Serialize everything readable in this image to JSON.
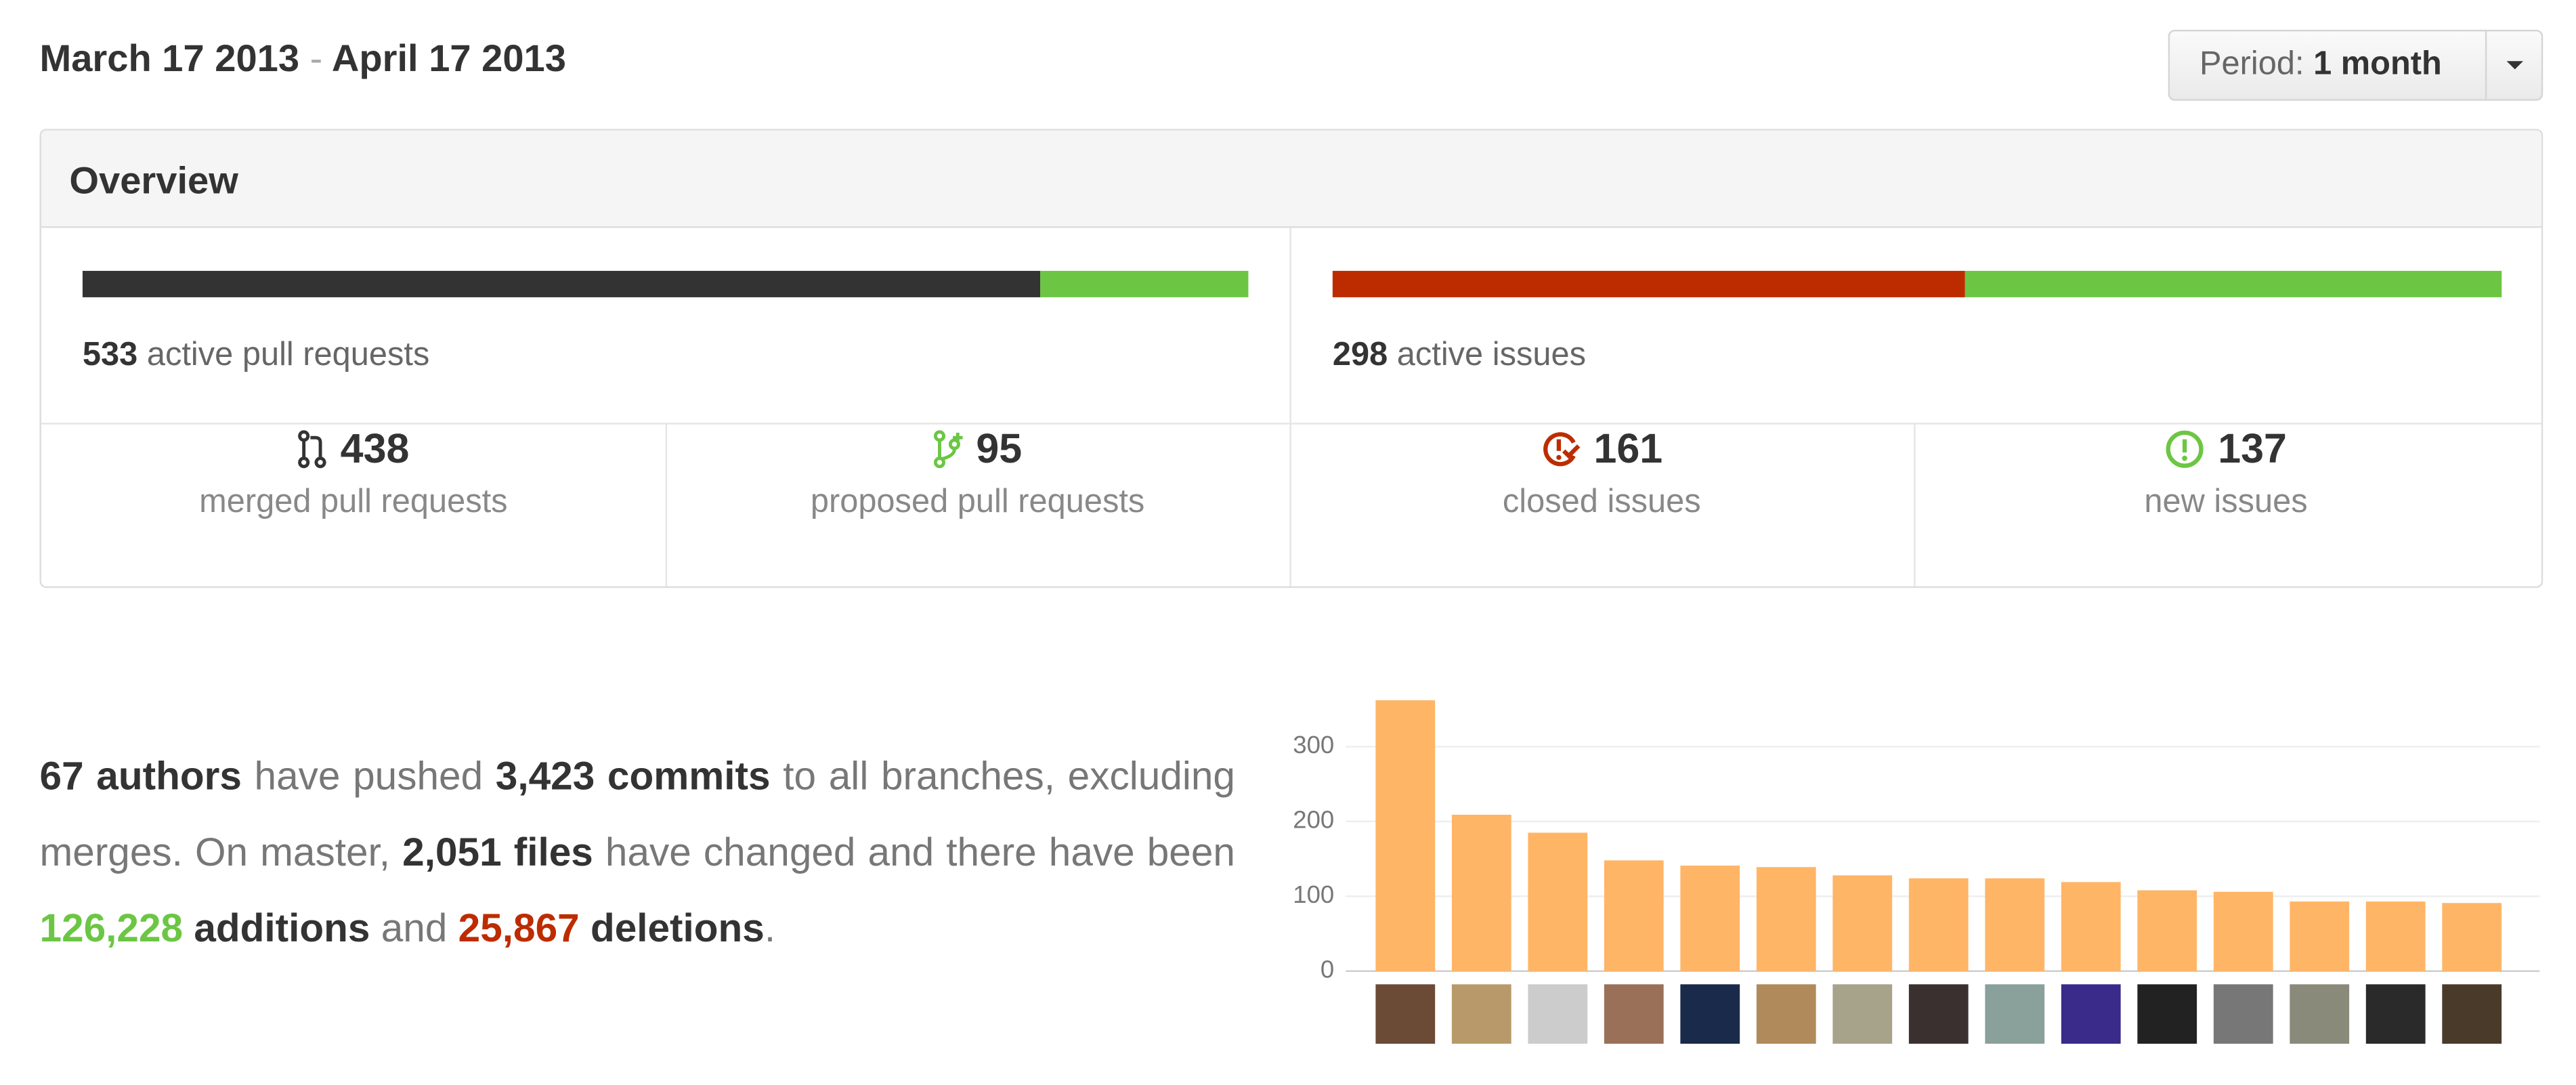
{
  "header": {
    "date_start": "March 17 2013",
    "separator": "-",
    "date_end": "April 17 2013"
  },
  "period": {
    "label": "Period:",
    "value": "1 month"
  },
  "overview": {
    "title": "Overview",
    "pull_requests": {
      "active": 533,
      "active_label": "active pull requests",
      "merged": {
        "value": 438,
        "label": "merged pull requests"
      },
      "proposed": {
        "value": 95,
        "label": "proposed pull requests"
      }
    },
    "issues": {
      "active": 298,
      "active_label": "active issues",
      "closed": {
        "value": 161,
        "label": "closed issues"
      },
      "new": {
        "value": 137,
        "label": "new issues"
      }
    }
  },
  "summary": [
    "67 authors",
    "have pushed",
    "3,423 commits",
    "to all branches, excluding merges. On master,",
    "2,051 files",
    "have changed and there have been",
    "126,228",
    "additions",
    "and",
    "25,867",
    "deletions",
    "."
  ],
  "chart_data": {
    "type": "bar",
    "categories": [
      null,
      null,
      null,
      null,
      null,
      null,
      null,
      null,
      null,
      null,
      null,
      null,
      null,
      null,
      null
    ],
    "values": [
      362,
      209,
      185,
      148,
      141,
      139,
      128,
      124,
      124,
      119,
      108,
      106,
      93,
      93,
      91
    ],
    "color": "#ffb566",
    "ylim": [
      0,
      390
    ],
    "yticks": [
      0,
      100,
      200,
      300
    ],
    "grid": true
  }
}
